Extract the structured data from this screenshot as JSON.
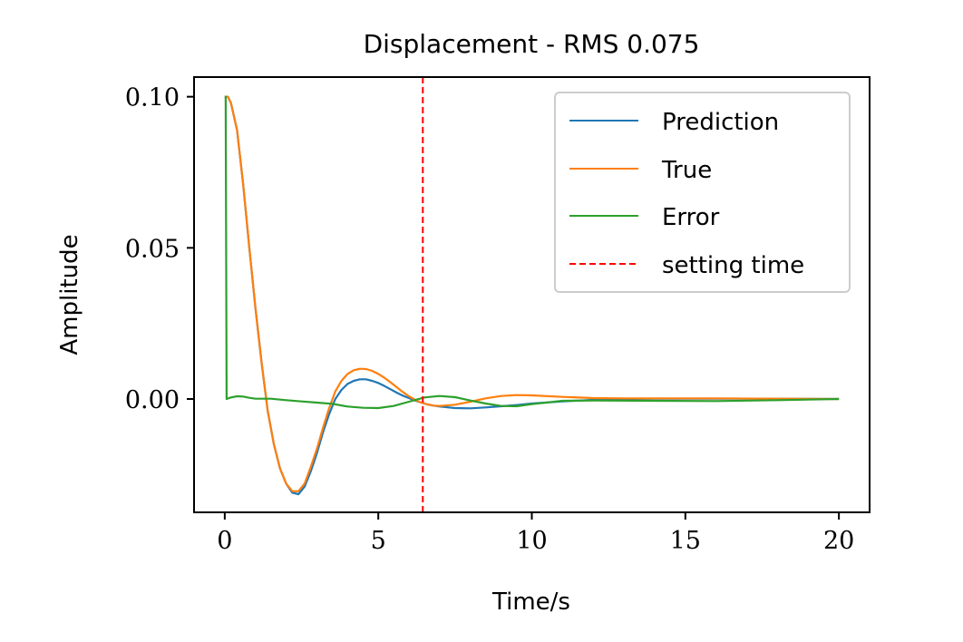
{
  "chart_data": {
    "type": "line",
    "title": "Displacement - RMS 0.075",
    "xlabel": "Time/s",
    "ylabel": "Amplitude",
    "xlim": [
      -1,
      21
    ],
    "ylim": [
      -0.0375,
      0.1065
    ],
    "xticks": [
      0,
      5,
      10,
      15,
      20
    ],
    "xtick_labels": [
      "0",
      "5",
      "10",
      "15",
      "20"
    ],
    "yticks": [
      0.0,
      0.05,
      0.1
    ],
    "ytick_labels": [
      "0.00",
      "0.05",
      "0.10"
    ],
    "grid": false,
    "legend_position": "top-right",
    "series": [
      {
        "name": "Prediction",
        "color": "#1f77b4",
        "x": [
          0,
          0.1,
          0.2,
          0.4,
          0.6,
          0.8,
          1.0,
          1.2,
          1.4,
          1.6,
          1.8,
          2.0,
          2.2,
          2.4,
          2.6,
          2.8,
          3.0,
          3.2,
          3.4,
          3.6,
          3.8,
          4.0,
          4.2,
          4.4,
          4.6,
          4.8,
          5.0,
          5.2,
          5.4,
          5.6,
          5.8,
          6.0,
          6.2,
          6.4,
          6.6,
          6.8,
          7.0,
          7.5,
          8.0,
          8.5,
          9.0,
          9.5,
          10.0,
          11.0,
          12.0,
          13.0,
          14.0,
          16.0,
          18.0,
          20.0
        ],
        "y": [
          0.1,
          0.1,
          0.098,
          0.089,
          0.071,
          0.05,
          0.03,
          0.012,
          -0.004,
          -0.015,
          -0.023,
          -0.028,
          -0.031,
          -0.0315,
          -0.029,
          -0.024,
          -0.018,
          -0.011,
          -0.005,
          0.0,
          0.003,
          0.005,
          0.006,
          0.0065,
          0.0065,
          0.006,
          0.0053,
          0.0043,
          0.0032,
          0.0021,
          0.0011,
          0.0003,
          -0.0005,
          -0.0012,
          -0.0018,
          -0.0022,
          -0.0025,
          -0.003,
          -0.0031,
          -0.0028,
          -0.0024,
          -0.002,
          -0.0015,
          -0.0008,
          -0.0003,
          0.0,
          0.0001,
          0.0001,
          0.0001,
          0.0
        ]
      },
      {
        "name": "True",
        "color": "#ff7f0e",
        "x": [
          0,
          0.1,
          0.2,
          0.4,
          0.6,
          0.8,
          1.0,
          1.2,
          1.4,
          1.6,
          1.8,
          2.0,
          2.2,
          2.4,
          2.6,
          2.8,
          3.0,
          3.2,
          3.4,
          3.6,
          3.8,
          4.0,
          4.2,
          4.4,
          4.6,
          4.8,
          5.0,
          5.2,
          5.4,
          5.6,
          5.8,
          6.0,
          6.2,
          6.4,
          6.6,
          6.8,
          7.0,
          7.5,
          8.0,
          8.5,
          9.0,
          9.5,
          10.0,
          11.0,
          12.0,
          13.0,
          14.0,
          16.0,
          18.0,
          20.0
        ],
        "y": [
          0.1,
          0.1,
          0.098,
          0.089,
          0.071,
          0.05,
          0.03,
          0.012,
          -0.004,
          -0.015,
          -0.023,
          -0.028,
          -0.0305,
          -0.0305,
          -0.028,
          -0.0225,
          -0.0165,
          -0.0095,
          -0.003,
          0.0025,
          0.006,
          0.0083,
          0.0095,
          0.01,
          0.0099,
          0.0093,
          0.0083,
          0.007,
          0.0055,
          0.0039,
          0.0023,
          0.0009,
          -0.0003,
          -0.0012,
          -0.0018,
          -0.0022,
          -0.0023,
          -0.0019,
          -0.0009,
          0.0002,
          0.001,
          0.0013,
          0.0012,
          0.0007,
          0.0003,
          0.0002,
          0.0002,
          0.0002,
          0.0001,
          0.0
        ]
      },
      {
        "name": "Error",
        "color": "#2ca02c",
        "x": [
          0,
          0.03,
          0.06,
          0.2,
          0.4,
          0.6,
          0.8,
          1.0,
          1.5,
          2.0,
          2.5,
          3.0,
          3.5,
          4.0,
          4.5,
          5.0,
          5.5,
          6.0,
          6.5,
          7.0,
          7.5,
          8.0,
          8.5,
          9.0,
          9.5,
          10.0,
          11.0,
          12.0,
          14.0,
          16.0,
          18.0,
          20.0
        ],
        "y": [
          0.1,
          0.1,
          0.0,
          0.0005,
          0.0009,
          0.0008,
          0.0004,
          0.0001,
          0.0001,
          -0.0004,
          -0.0008,
          -0.0012,
          -0.0016,
          -0.0025,
          -0.0029,
          -0.003,
          -0.0023,
          -0.0009,
          0.0005,
          0.001,
          0.0006,
          -0.0005,
          -0.0015,
          -0.0023,
          -0.0024,
          -0.0017,
          -0.0006,
          -0.0005,
          -0.0006,
          -0.0007,
          -0.0004,
          0.0
        ]
      }
    ],
    "vlines": [
      {
        "name": "setting time",
        "x": 6.45,
        "color": "#ff0000",
        "style": "dashed"
      }
    ]
  }
}
